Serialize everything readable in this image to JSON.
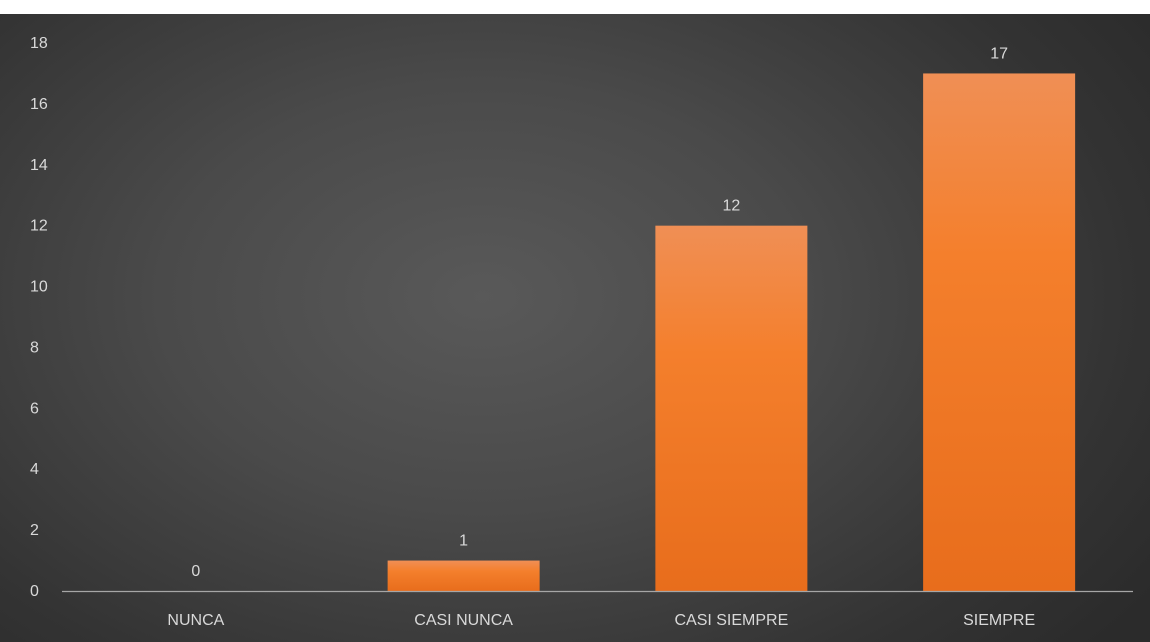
{
  "chart_data": {
    "type": "bar",
    "title": "",
    "xlabel": "",
    "ylabel": "",
    "categories": [
      "NUNCA",
      "CASI NUNCA",
      "CASI SIEMPRE",
      "SIEMPRE"
    ],
    "values": [
      0,
      1,
      12,
      17
    ],
    "data_labels": [
      "0",
      "1",
      "12",
      "17"
    ],
    "ylim": [
      0,
      18
    ],
    "yticks": [
      0,
      2,
      4,
      6,
      8,
      10,
      12,
      14,
      16,
      18
    ],
    "grid": false,
    "legend": "none",
    "bar_color": "#ED7D31",
    "background_color": "#404040",
    "text_color": "#D9D9D9"
  }
}
